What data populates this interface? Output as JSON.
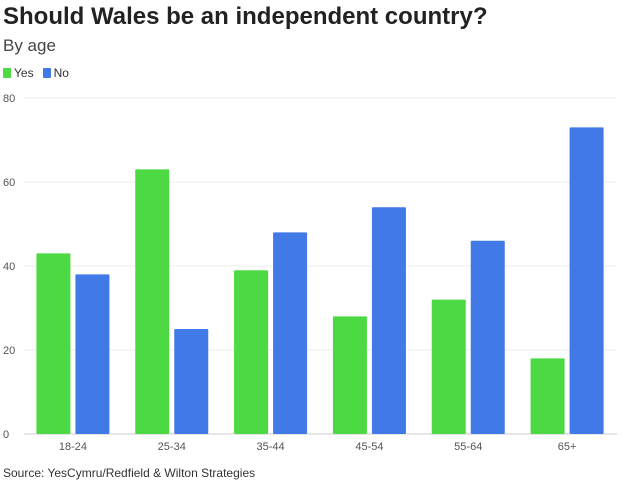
{
  "chart_data": {
    "type": "bar",
    "title": "Should Wales be an independent country?",
    "subtitle": "By age",
    "categories": [
      "18-24",
      "25-34",
      "35-44",
      "45-54",
      "55-64",
      "65+"
    ],
    "series": [
      {
        "name": "Yes",
        "color": "#4cd944",
        "values": [
          43,
          63,
          39,
          28,
          32,
          18
        ]
      },
      {
        "name": "No",
        "color": "#4179e6",
        "values": [
          38,
          25,
          48,
          54,
          46,
          73
        ]
      }
    ],
    "yticks": [
      "0",
      "20",
      "40",
      "60",
      "80"
    ],
    "ylim": [
      0,
      80
    ],
    "xlabel": "",
    "ylabel": "",
    "legend_position": "top-left",
    "grid": true,
    "source": "Source: YesCymru/Redfield & Wilton Strategies"
  }
}
